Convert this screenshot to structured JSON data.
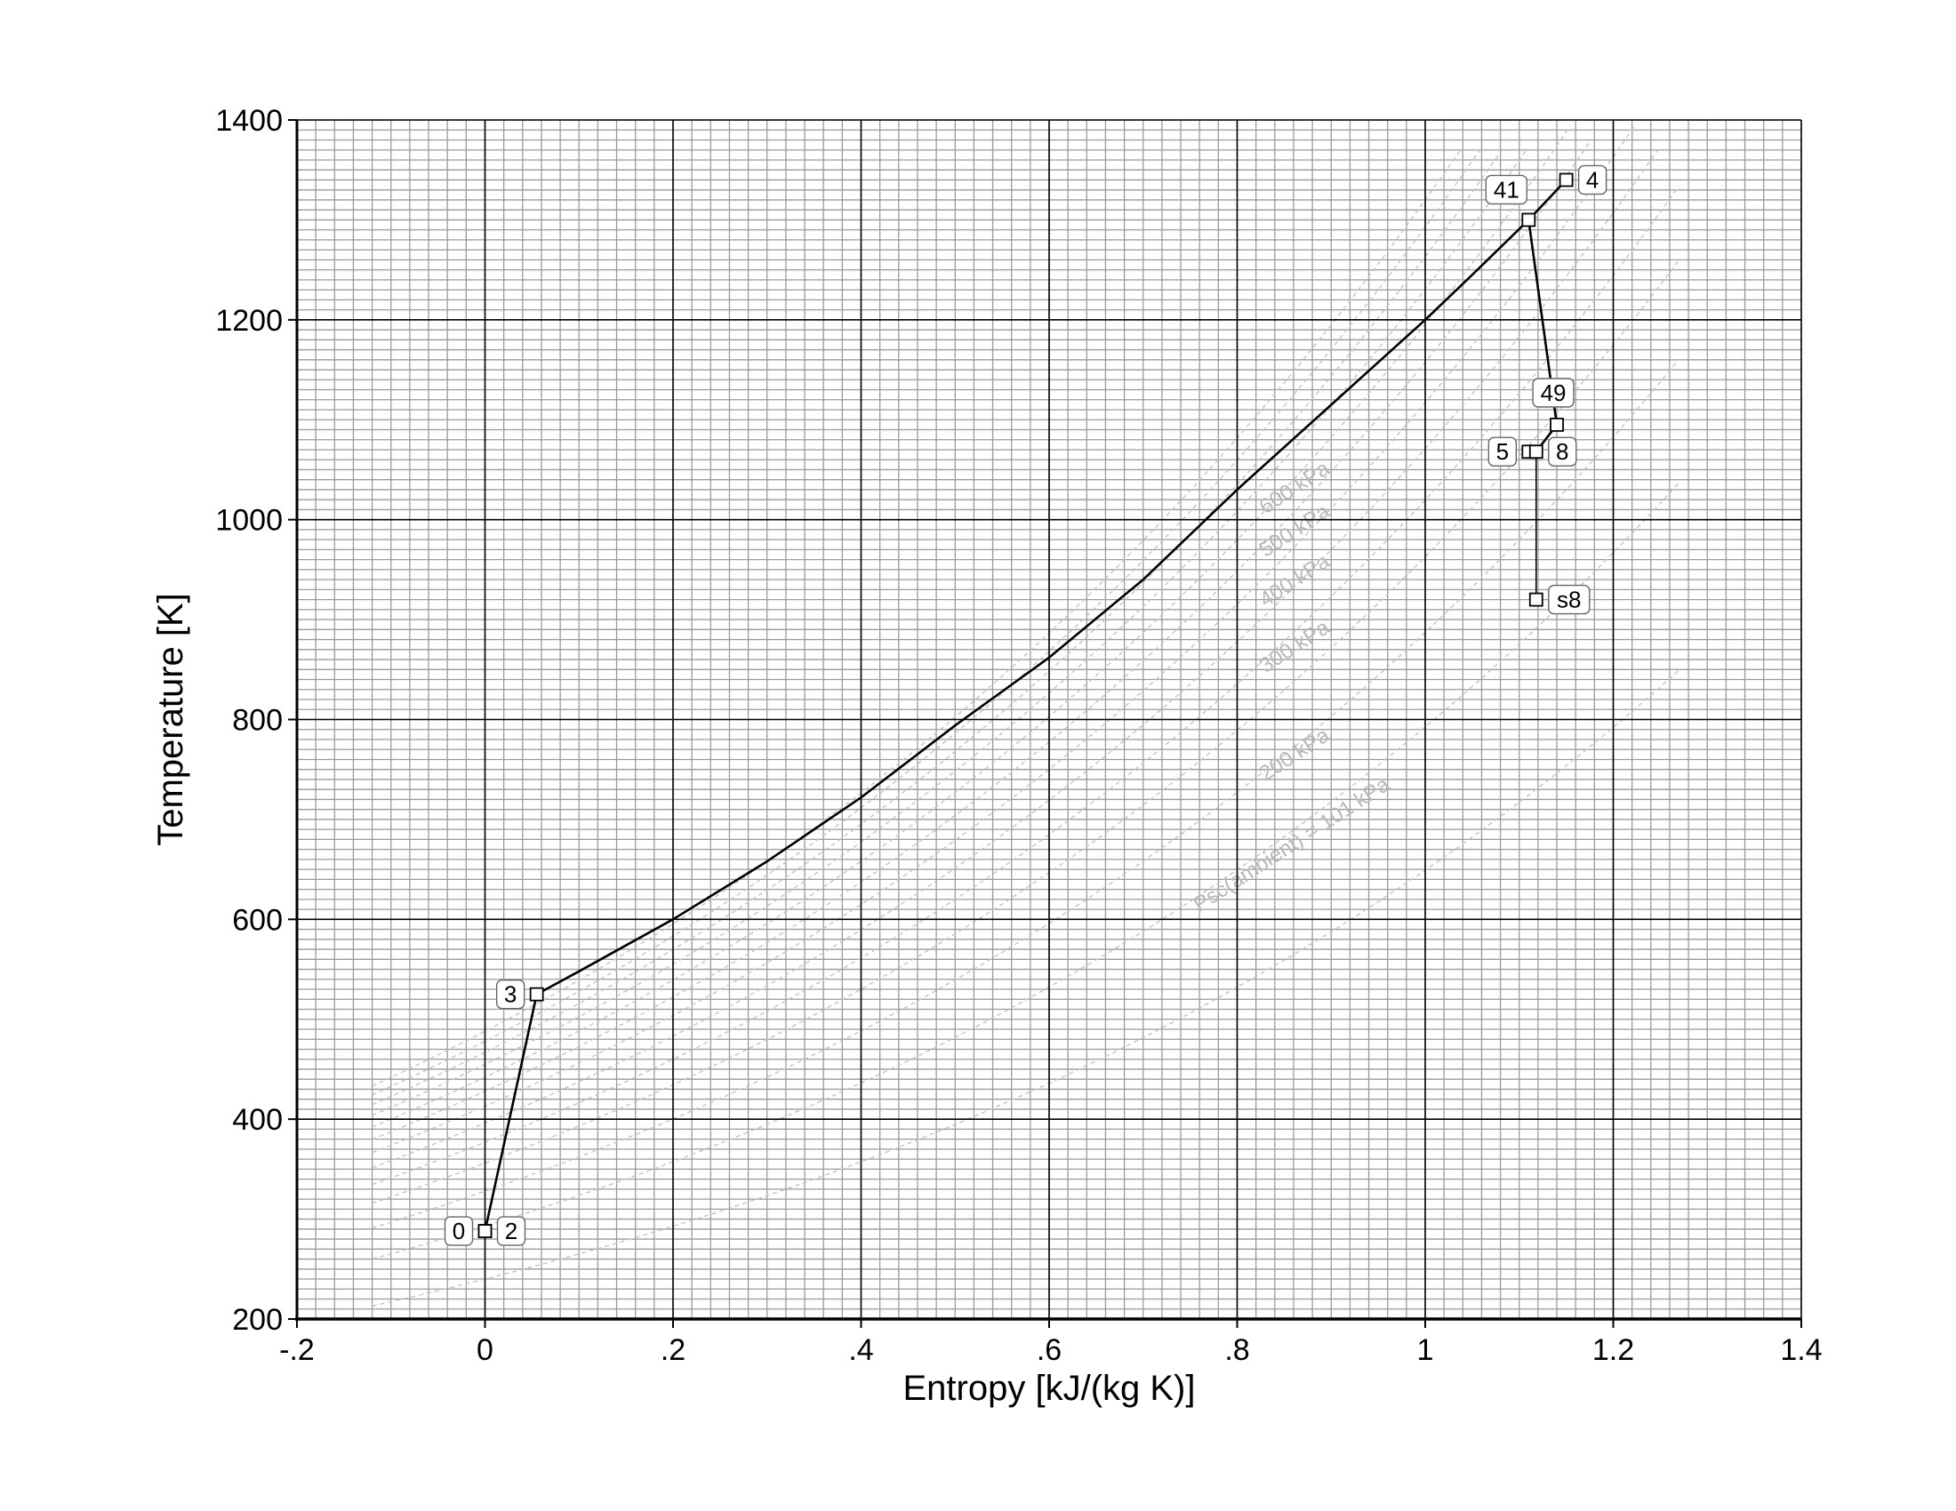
{
  "chart_data": {
    "type": "line",
    "xlabel": "Entropy [kJ/(kg K)]",
    "ylabel": "Temperature [K]",
    "xlim": [
      -0.2,
      1.4
    ],
    "ylim": [
      200,
      1400
    ],
    "x_ticks": [
      {
        "value": -0.2,
        "label": "-.2"
      },
      {
        "value": 0,
        "label": "0"
      },
      {
        "value": 0.2,
        "label": ".2"
      },
      {
        "value": 0.4,
        "label": ".4"
      },
      {
        "value": 0.6,
        "label": ".6"
      },
      {
        "value": 0.8,
        "label": ".8"
      },
      {
        "value": 1.0,
        "label": "1"
      },
      {
        "value": 1.2,
        "label": "1.2"
      },
      {
        "value": 1.4,
        "label": "1.4"
      }
    ],
    "y_ticks": [
      {
        "value": 200,
        "label": "200"
      },
      {
        "value": 400,
        "label": "400"
      },
      {
        "value": 600,
        "label": "600"
      },
      {
        "value": 800,
        "label": "800"
      },
      {
        "value": 1000,
        "label": "1000"
      },
      {
        "value": 1200,
        "label": "1200"
      },
      {
        "value": 1400,
        "label": "1400"
      }
    ],
    "grid": true,
    "cycle_points": [
      {
        "label": "0",
        "s": 0.0,
        "T": 288,
        "side": "left"
      },
      {
        "label": "2",
        "s": 0.0,
        "T": 288,
        "side": "right"
      },
      {
        "label": "3",
        "s": 0.055,
        "T": 525,
        "side": "left"
      },
      {
        "label": "41",
        "s": 1.11,
        "T": 1300,
        "side": "top-left"
      },
      {
        "label": "4",
        "s": 1.15,
        "T": 1340,
        "side": "right"
      },
      {
        "label": "49",
        "s": 1.14,
        "T": 1095,
        "side": "top"
      },
      {
        "label": "5",
        "s": 1.11,
        "T": 1068,
        "side": "left"
      },
      {
        "label": "8",
        "s": 1.118,
        "T": 1068,
        "side": "right"
      },
      {
        "label": "s8",
        "s": 1.118,
        "T": 920,
        "side": "right"
      }
    ],
    "cycle_path": {
      "compression": [
        [
          0.0,
          288
        ],
        [
          0.055,
          525
        ]
      ],
      "heat_addition_curve": [
        [
          0.055,
          525
        ],
        [
          0.1,
          548
        ],
        [
          0.2,
          600
        ],
        [
          0.3,
          658
        ],
        [
          0.4,
          722
        ],
        [
          0.5,
          794
        ],
        [
          0.6,
          862
        ],
        [
          0.7,
          940
        ],
        [
          0.8,
          1030
        ],
        [
          0.9,
          1115
        ],
        [
          1.0,
          1200
        ],
        [
          1.05,
          1245
        ],
        [
          1.11,
          1300
        ]
      ],
      "burner_exit": [
        [
          1.11,
          1300
        ],
        [
          1.15,
          1340
        ]
      ],
      "expansion": [
        [
          1.11,
          1300
        ],
        [
          1.14,
          1095
        ],
        [
          1.118,
          1068
        ],
        [
          1.11,
          1068
        ]
      ],
      "nozzle": [
        [
          1.118,
          1068
        ],
        [
          1.118,
          920
        ]
      ]
    },
    "isobars": [
      {
        "label": "Psc(ambient) = 101 kPa",
        "T_at_s0": 240,
        "labeled": true
      },
      {
        "label": "200 kPa",
        "T_at_s0": 293,
        "labeled": true
      },
      {
        "label": "300 kPa",
        "T_at_s0": 328,
        "labeled": true
      },
      {
        "label": "400 kPa",
        "T_at_s0": 356,
        "labeled": true
      },
      {
        "label": "500 kPa",
        "T_at_s0": 377,
        "labeled": true
      },
      {
        "label": "600 kPa",
        "T_at_s0": 396,
        "labeled": true
      },
      {
        "label": "",
        "T_at_s0": 413,
        "labeled": false
      },
      {
        "label": "",
        "T_at_s0": 428,
        "labeled": false
      },
      {
        "label": "",
        "T_at_s0": 442,
        "labeled": false
      },
      {
        "label": "",
        "T_at_s0": 455,
        "labeled": false
      },
      {
        "label": "",
        "T_at_s0": 467,
        "labeled": false
      },
      {
        "label": "",
        "T_at_s0": 478,
        "labeled": false
      },
      {
        "label": "",
        "T_at_s0": 488,
        "labeled": false
      }
    ],
    "isobar_s_range": [
      -0.12,
      1.27
    ],
    "isobar_labels": [
      {
        "text": "Psc(ambient) = 101 kPa",
        "s": 0.76,
        "T": 607
      },
      {
        "text": "200 kPa",
        "s": 0.83,
        "T": 738
      },
      {
        "text": "300 kPa",
        "s": 0.83,
        "T": 846
      },
      {
        "text": "400 kPa",
        "s": 0.83,
        "T": 912
      },
      {
        "text": "500 kPa",
        "s": 0.83,
        "T": 962
      },
      {
        "text": "600 kPa",
        "s": 0.83,
        "T": 1005
      }
    ],
    "colors": {
      "cycle": "#000000",
      "major_grid": "#000000",
      "minor_grid": "#9a9a9a",
      "isobar": "#c4c4c4"
    }
  }
}
